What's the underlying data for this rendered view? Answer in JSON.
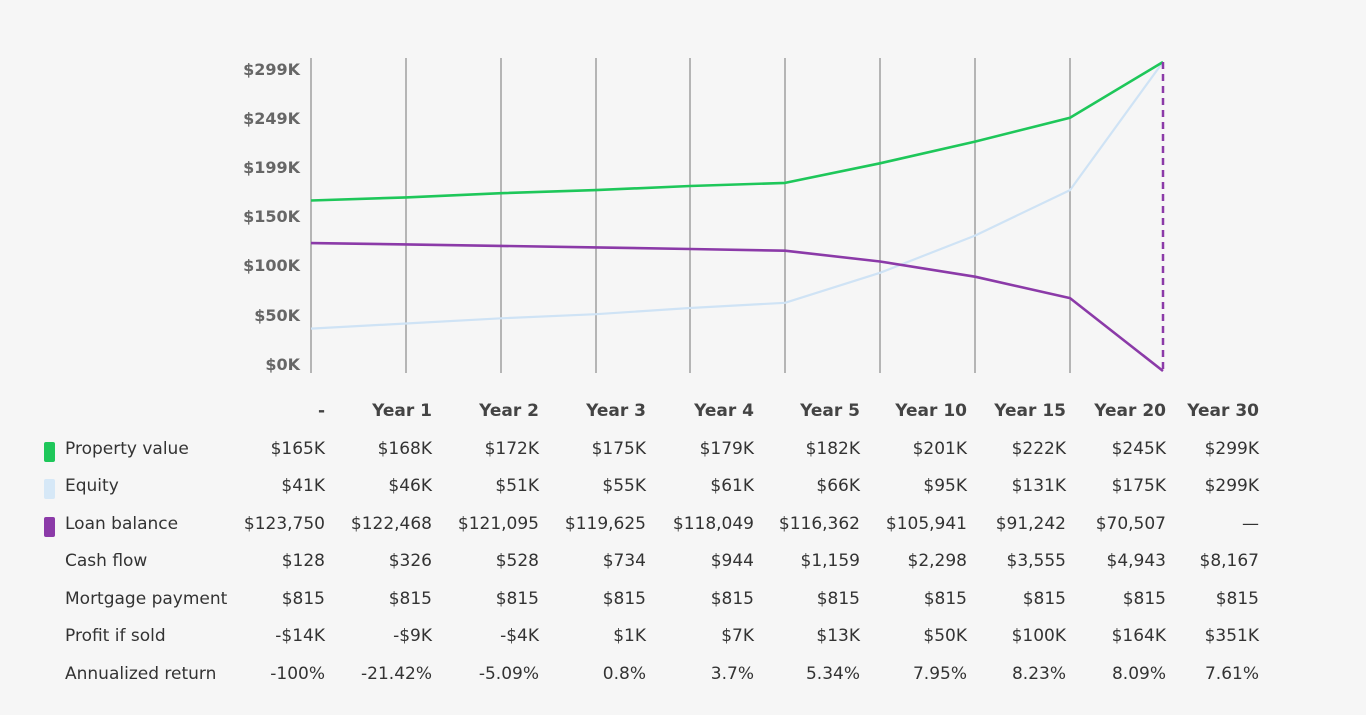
{
  "chart_data": {
    "type": "line",
    "x": [
      "-",
      "Year 1",
      "Year 2",
      "Year 3",
      "Year 4",
      "Year 5",
      "Year 10",
      "Year 15",
      "Year 20",
      "Year 30"
    ],
    "y_tick_labels": [
      "$0K",
      "$50K",
      "$100K",
      "$150K",
      "$199K",
      "$249K",
      "$299K"
    ],
    "y_tick_values": [
      0,
      49833,
      99667,
      149500,
      199333,
      249167,
      299000
    ],
    "ylim": [
      0,
      299000
    ],
    "grid": "vertical",
    "highlight_x": "Year 30",
    "series": [
      {
        "name": "Property value",
        "color": "#1ec75a",
        "values": [
          165000,
          168000,
          172000,
          175000,
          179000,
          182000,
          201000,
          222000,
          245000,
          299000
        ]
      },
      {
        "name": "Equity",
        "color": "#cfe3f5",
        "values": [
          41000,
          46000,
          51000,
          55000,
          61000,
          66000,
          95000,
          131000,
          175000,
          299000
        ]
      },
      {
        "name": "Loan balance",
        "color": "#8b3aa8",
        "values": [
          123750,
          122468,
          121095,
          119625,
          118049,
          116362,
          105941,
          91242,
          70507,
          0
        ]
      }
    ]
  },
  "table": {
    "columns": [
      "-",
      "Year 1",
      "Year 2",
      "Year 3",
      "Year 4",
      "Year 5",
      "Year 10",
      "Year 15",
      "Year 20",
      "Year 30"
    ],
    "rows": [
      {
        "label": "Property value",
        "swatch": "#1ec75a",
        "values": [
          "$165K",
          "$168K",
          "$172K",
          "$175K",
          "$179K",
          "$182K",
          "$201K",
          "$222K",
          "$245K",
          "$299K"
        ]
      },
      {
        "label": "Equity",
        "swatch": "#d6e8f7",
        "values": [
          "$41K",
          "$46K",
          "$51K",
          "$55K",
          "$61K",
          "$66K",
          "$95K",
          "$131K",
          "$175K",
          "$299K"
        ]
      },
      {
        "label": "Loan balance",
        "swatch": "#8b3aa8",
        "values": [
          "$123,750",
          "$122,468",
          "$121,095",
          "$119,625",
          "$118,049",
          "$116,362",
          "$105,941",
          "$91,242",
          "$70,507",
          "—"
        ]
      },
      {
        "label": "Cash flow",
        "swatch": "",
        "values": [
          "$128",
          "$326",
          "$528",
          "$734",
          "$944",
          "$1,159",
          "$2,298",
          "$3,555",
          "$4,943",
          "$8,167"
        ]
      },
      {
        "label": "Mortgage payment",
        "swatch": "",
        "values": [
          "$815",
          "$815",
          "$815",
          "$815",
          "$815",
          "$815",
          "$815",
          "$815",
          "$815",
          "$815"
        ]
      },
      {
        "label": "Profit if sold",
        "swatch": "",
        "values": [
          "-$14K",
          "-$9K",
          "-$4K",
          "$1K",
          "$7K",
          "$13K",
          "$50K",
          "$100K",
          "$164K",
          "$351K"
        ]
      },
      {
        "label": "Annualized return",
        "swatch": "",
        "values": [
          "-100%",
          "-21.42%",
          "-5.09%",
          "0.8%",
          "3.7%",
          "5.34%",
          "7.95%",
          "8.23%",
          "8.09%",
          "7.61%"
        ]
      }
    ]
  }
}
